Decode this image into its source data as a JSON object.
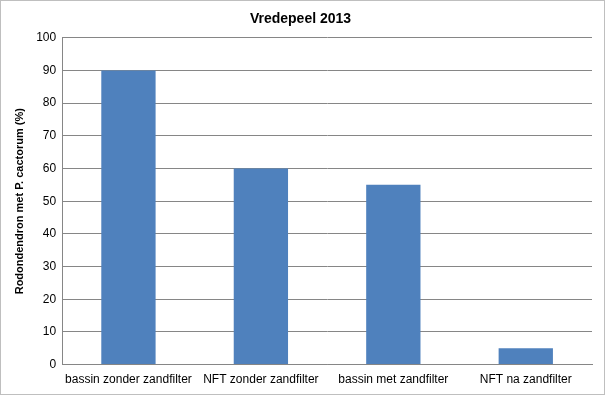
{
  "chart_data": {
    "type": "bar",
    "title": "Vredepeel 2013",
    "y_label": "Rodondendron met P. cactorum (%)",
    "categories": [
      "bassin zonder zandfilter",
      "NFT zonder zandfilter",
      "bassin met zandfilter",
      "NFT na zandfilter"
    ],
    "values": [
      90,
      60,
      55,
      5
    ],
    "color": "#4f81bd",
    "ylim": [
      0,
      100
    ],
    "yticks": [
      0,
      10,
      20,
      30,
      40,
      50,
      60,
      70,
      80,
      90,
      100
    ],
    "grid": true
  }
}
